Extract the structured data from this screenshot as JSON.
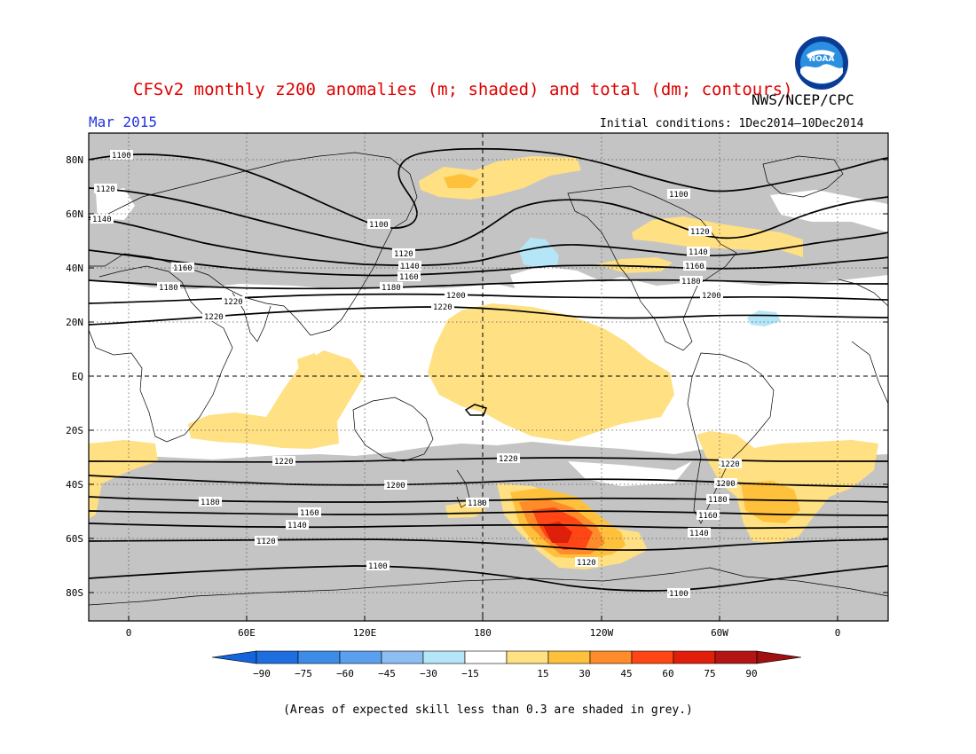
{
  "title": "CFSv2 monthly z200 anomalies (m; shaded) and total (dm; contours)",
  "month": "Mar 2015",
  "initial_conditions": "Initial conditions: 1Dec2014—10Dec2014",
  "agency": "NWS/NCEP/CPC",
  "logo": {
    "icon": "noaa-logo-icon",
    "text": "NOAA"
  },
  "caption": "(Areas of expected skill less than 0.3 are shaded in grey.)",
  "lat_labels": [
    "80N",
    "60N",
    "40N",
    "20N",
    "EQ",
    "20S",
    "40S",
    "60S",
    "80S"
  ],
  "lon_labels": [
    "0",
    "60E",
    "120E",
    "180",
    "120W",
    "60W",
    "0"
  ],
  "colorbar": {
    "labels": [
      "−90",
      "−75",
      "−60",
      "−45",
      "−30",
      "−15",
      "15",
      "30",
      "45",
      "60",
      "75",
      "90"
    ],
    "colors": [
      "#1e6ee0",
      "#3c8ce8",
      "#5aa0ee",
      "#8cbef2",
      "#b4e6f8",
      "#ffffff",
      "#ffe082",
      "#ffc03c",
      "#ff8c28",
      "#ff4614",
      "#e01e0a",
      "#b41414"
    ],
    "end_low": "#1464dc",
    "end_high": "#a01010"
  },
  "contour_labels": {
    "n1100a": "1100",
    "n1100b": "1100",
    "n1100c": "1100",
    "n1120a": "1120",
    "n1120b": "1120",
    "n1120c": "1120",
    "n1140a": "1140",
    "n1140b": "1140",
    "n1140c": "1140",
    "n1160a": "1160",
    "n1160b": "1160",
    "n1160c": "1160",
    "n1180a": "1180",
    "n1180b": "1180",
    "n1180c": "1180",
    "n1200a": "1200",
    "n1200b": "1200",
    "n1220a": "1220",
    "n1220b": "1220",
    "n1220c": "1220",
    "s1220a": "1220",
    "s1220b": "1220",
    "s1220c": "1220",
    "s1200a": "1200",
    "s1200b": "1200",
    "s1180a": "1180",
    "s1180b": "1180",
    "s1180c": "1180",
    "s1160a": "1160",
    "s1160b": "1160",
    "s1140a": "1140",
    "s1140b": "1140",
    "s1120a": "1120",
    "s1120b": "1120",
    "s1100a": "1100",
    "s1100b": "1100"
  },
  "colors": {
    "grey_skill": "#c4c4c4",
    "title": "#e00000",
    "month": "#2233dd"
  }
}
